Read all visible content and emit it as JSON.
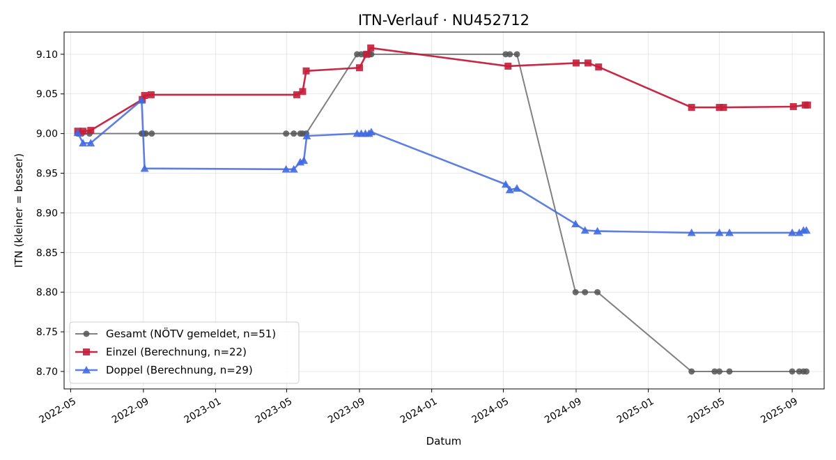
{
  "chart_data": {
    "type": "line",
    "title": "ITN-Verlauf · NU452712",
    "xlabel": "Datum",
    "ylabel": "ITN  (kleiner = besser)",
    "xlim": [
      "2022-04-20",
      "2025-10-25"
    ],
    "ylim": [
      8.678,
      9.128
    ],
    "grid": true,
    "legend_position": "lower-left",
    "x_ticks": [
      "2022-05",
      "2022-09",
      "2023-01",
      "2023-05",
      "2023-09",
      "2024-01",
      "2024-05",
      "2024-09",
      "2025-01",
      "2025-05",
      "2025-09"
    ],
    "y_ticks": [
      "8.70",
      "8.75",
      "8.80",
      "8.85",
      "8.90",
      "8.95",
      "9.00",
      "9.05",
      "9.10"
    ],
    "series": [
      {
        "name": "Gesamt (NÖTV gemeldet, n=51)",
        "color": "#555555",
        "marker": "circle",
        "points": [
          [
            "2022-05-13",
            9.0
          ],
          [
            "2022-05-20",
            9.0
          ],
          [
            "2022-06-02",
            9.0
          ],
          [
            "2022-08-29",
            9.0
          ],
          [
            "2022-09-01",
            9.0
          ],
          [
            "2022-09-05",
            9.0
          ],
          [
            "2022-09-15",
            9.0
          ],
          [
            "2023-04-30",
            9.0
          ],
          [
            "2023-05-13",
            9.0
          ],
          [
            "2023-05-24",
            9.0
          ],
          [
            "2023-05-28",
            9.0
          ],
          [
            "2023-06-03",
            9.0
          ],
          [
            "2023-08-28",
            9.1
          ],
          [
            "2023-09-04",
            9.1
          ],
          [
            "2023-09-11",
            9.1
          ],
          [
            "2023-09-18",
            9.1
          ],
          [
            "2023-09-21",
            9.1
          ],
          [
            "2024-05-05",
            9.1
          ],
          [
            "2024-05-12",
            9.1
          ],
          [
            "2024-05-24",
            9.1
          ],
          [
            "2024-08-31",
            8.8
          ],
          [
            "2024-09-16",
            8.8
          ],
          [
            "2024-10-07",
            8.8
          ],
          [
            "2025-03-15",
            8.7
          ],
          [
            "2025-04-23",
            8.7
          ],
          [
            "2025-05-01",
            8.7
          ],
          [
            "2025-05-18",
            8.7
          ],
          [
            "2025-09-01",
            8.7
          ],
          [
            "2025-09-13",
            8.7
          ],
          [
            "2025-09-20",
            8.7
          ],
          [
            "2025-09-25",
            8.7
          ]
        ]
      },
      {
        "name": "Einzel (Berechnung, n=22)",
        "color": "#c41e3a",
        "marker": "square",
        "points": [
          [
            "2022-05-13",
            9.003
          ],
          [
            "2022-05-22",
            9.003
          ],
          [
            "2022-06-04",
            9.004
          ],
          [
            "2022-08-30",
            9.043
          ],
          [
            "2022-09-03",
            9.048
          ],
          [
            "2022-09-14",
            9.049
          ],
          [
            "2023-05-18",
            9.049
          ],
          [
            "2023-05-28",
            9.053
          ],
          [
            "2023-06-03",
            9.079
          ],
          [
            "2023-09-01",
            9.083
          ],
          [
            "2023-09-13",
            9.1
          ],
          [
            "2023-09-20",
            9.108
          ],
          [
            "2024-05-09",
            9.085
          ],
          [
            "2024-09-01",
            9.089
          ],
          [
            "2024-09-21",
            9.089
          ],
          [
            "2024-10-09",
            9.084
          ],
          [
            "2025-03-15",
            9.033
          ],
          [
            "2025-05-01",
            9.033
          ],
          [
            "2025-05-08",
            9.033
          ],
          [
            "2025-09-03",
            9.034
          ],
          [
            "2025-09-23",
            9.036
          ],
          [
            "2025-09-27",
            9.036
          ]
        ]
      },
      {
        "name": "Doppel (Berechnung, n=29)",
        "color": "#4169e1",
        "marker": "triangle",
        "points": [
          [
            "2022-05-13",
            9.001
          ],
          [
            "2022-05-22",
            8.988
          ],
          [
            "2022-06-04",
            8.988
          ],
          [
            "2022-08-29",
            9.042
          ],
          [
            "2022-09-03",
            8.956
          ],
          [
            "2023-04-30",
            8.955
          ],
          [
            "2023-05-13",
            8.955
          ],
          [
            "2023-05-24",
            8.964
          ],
          [
            "2023-05-30",
            8.966
          ],
          [
            "2023-06-04",
            8.997
          ],
          [
            "2023-08-28",
            9.0
          ],
          [
            "2023-09-04",
            9.0
          ],
          [
            "2023-09-11",
            9.0
          ],
          [
            "2023-09-17",
            9.0
          ],
          [
            "2023-09-21",
            9.002
          ],
          [
            "2024-05-05",
            8.936
          ],
          [
            "2024-05-12",
            8.929
          ],
          [
            "2024-05-24",
            8.931
          ],
          [
            "2024-08-31",
            8.886
          ],
          [
            "2024-09-16",
            8.878
          ],
          [
            "2024-10-07",
            8.877
          ],
          [
            "2025-03-15",
            8.875
          ],
          [
            "2025-05-01",
            8.875
          ],
          [
            "2025-05-18",
            8.875
          ],
          [
            "2025-09-01",
            8.875
          ],
          [
            "2025-09-13",
            8.875
          ],
          [
            "2025-09-20",
            8.878
          ],
          [
            "2025-09-25",
            8.878
          ]
        ]
      }
    ]
  }
}
